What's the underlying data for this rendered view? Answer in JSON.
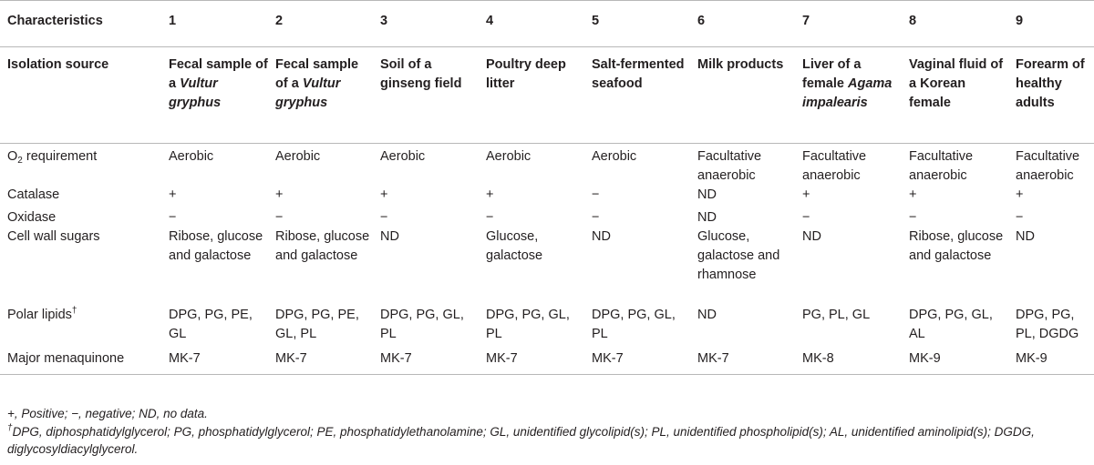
{
  "header": {
    "label": "Characteristics",
    "columns": [
      "1",
      "2",
      "3",
      "4",
      "5",
      "6",
      "7",
      "8",
      "9"
    ]
  },
  "isolation_source": {
    "label": "Isolation source",
    "values": [
      {
        "pre": "Fecal sample of a ",
        "italic": "Vultur gryphus",
        "post": ""
      },
      {
        "pre": "Fecal sample of a ",
        "italic": "Vultur gryphus",
        "post": ""
      },
      {
        "pre": "Soil of a ginseng field",
        "italic": "",
        "post": ""
      },
      {
        "pre": "Poultry deep litter",
        "italic": "",
        "post": ""
      },
      {
        "pre": "Salt-fermented seafood",
        "italic": "",
        "post": ""
      },
      {
        "pre": "Milk products",
        "italic": "",
        "post": ""
      },
      {
        "pre": "Liver of a female ",
        "italic": "Agama impalearis",
        "post": ""
      },
      {
        "pre": "Vaginal fluid of a Korean female",
        "italic": "",
        "post": ""
      },
      {
        "pre": "Forearm of healthy adults",
        "italic": "",
        "post": ""
      }
    ]
  },
  "o2": {
    "label_main": "O",
    "label_sub": "2",
    "label_rest": " requirement",
    "values": [
      "Aerobic",
      "Aerobic",
      "Aerobic",
      "Aerobic",
      "Aerobic",
      "Facultative anaerobic",
      "Facultative anaerobic",
      "Facultative anaerobic",
      "Facultative anaerobic"
    ]
  },
  "catalase": {
    "label": "Catalase",
    "values": [
      "+",
      "+",
      "+",
      "+",
      "−",
      "ND",
      "+",
      "+",
      "+"
    ]
  },
  "oxidase": {
    "label": "Oxidase",
    "values": [
      "−",
      "−",
      "−",
      "−",
      "−",
      "ND",
      "−",
      "−",
      "−"
    ]
  },
  "cell_wall_sugars": {
    "label": "Cell wall sugars",
    "values": [
      "Ribose, glucose and galactose",
      "Ribose, glucose and galactose",
      "ND",
      "Glucose, galactose",
      "ND",
      "Glucose, galactose and rhamnose",
      "ND",
      "Ribose, glucose and galactose",
      "ND"
    ]
  },
  "polar_lipids": {
    "label": "Polar lipids",
    "label_sup": "†",
    "values": [
      "DPG, PG, PE, GL",
      "DPG, PG, PE, GL, PL",
      "DPG, PG, GL, PL",
      "DPG, PG, GL, PL",
      "DPG, PG, GL, PL",
      "ND",
      "PG, PL, GL",
      "DPG, PG, GL, AL",
      "DPG, PG, PL, DGDG"
    ]
  },
  "menaquinone": {
    "label": "Major menaquinone",
    "values": [
      "MK-7",
      "MK-7",
      "MK-7",
      "MK-7",
      "MK-7",
      "MK-7",
      "MK-8",
      "MK-9",
      "MK-9"
    ]
  },
  "footnotes": {
    "line1": "+, Positive; −, negative; ND, no data.",
    "line2_sup": "†",
    "line2": "DPG, diphosphatidylglycerol; PG, phosphatidylglycerol; PE, phosphatidylethanolamine; GL, unidentified glycolipid(s); PL, unidentified phospholipid(s); AL, unidentified aminolipid(s); DGDG, diglycosyldiacylglycerol."
  }
}
